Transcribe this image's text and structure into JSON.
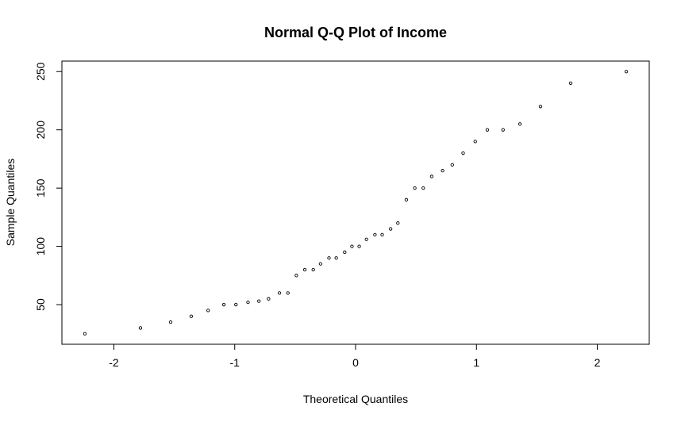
{
  "chart_data": {
    "type": "scatter",
    "title": "Normal Q-Q Plot of Income",
    "xlabel": "Theoretical Quantiles",
    "ylabel": "Sample Quantiles",
    "xlim": [
      -2.43,
      2.43
    ],
    "ylim": [
      16,
      259
    ],
    "x_ticks": [
      -2,
      -1,
      0,
      1,
      2
    ],
    "x_tick_labels": [
      "-2",
      "-1",
      "0",
      "1",
      "2"
    ],
    "y_ticks": [
      50,
      100,
      150,
      200,
      250
    ],
    "y_tick_labels": [
      "50",
      "100",
      "150",
      "200",
      "250"
    ],
    "grid": false,
    "marker": "open-circle",
    "marker_color": "#000000",
    "points": [
      {
        "x": -2.24,
        "y": 25
      },
      {
        "x": -1.78,
        "y": 30
      },
      {
        "x": -1.53,
        "y": 35
      },
      {
        "x": -1.36,
        "y": 40
      },
      {
        "x": -1.22,
        "y": 45
      },
      {
        "x": -1.09,
        "y": 50
      },
      {
        "x": -0.99,
        "y": 50
      },
      {
        "x": -0.89,
        "y": 52
      },
      {
        "x": -0.8,
        "y": 53
      },
      {
        "x": -0.72,
        "y": 55
      },
      {
        "x": -0.63,
        "y": 60
      },
      {
        "x": -0.56,
        "y": 60
      },
      {
        "x": -0.49,
        "y": 75
      },
      {
        "x": -0.42,
        "y": 80
      },
      {
        "x": -0.35,
        "y": 80
      },
      {
        "x": -0.29,
        "y": 85
      },
      {
        "x": -0.22,
        "y": 90
      },
      {
        "x": -0.16,
        "y": 90
      },
      {
        "x": -0.09,
        "y": 95
      },
      {
        "x": -0.03,
        "y": 100
      },
      {
        "x": 0.03,
        "y": 100
      },
      {
        "x": 0.09,
        "y": 106
      },
      {
        "x": 0.16,
        "y": 110
      },
      {
        "x": 0.22,
        "y": 110
      },
      {
        "x": 0.29,
        "y": 115
      },
      {
        "x": 0.35,
        "y": 120
      },
      {
        "x": 0.42,
        "y": 140
      },
      {
        "x": 0.49,
        "y": 150
      },
      {
        "x": 0.56,
        "y": 150
      },
      {
        "x": 0.63,
        "y": 160
      },
      {
        "x": 0.72,
        "y": 165
      },
      {
        "x": 0.8,
        "y": 170
      },
      {
        "x": 0.89,
        "y": 180
      },
      {
        "x": 0.99,
        "y": 190
      },
      {
        "x": 1.09,
        "y": 200
      },
      {
        "x": 1.22,
        "y": 200
      },
      {
        "x": 1.36,
        "y": 205
      },
      {
        "x": 1.53,
        "y": 220
      },
      {
        "x": 1.78,
        "y": 240
      },
      {
        "x": 2.24,
        "y": 250
      }
    ]
  }
}
